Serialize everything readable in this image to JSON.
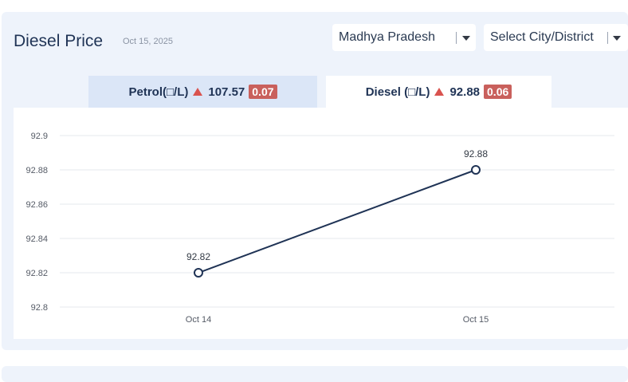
{
  "header": {
    "title": "Diesel Price",
    "date": "Oct 15, 2025",
    "state_select": "Madhya Pradesh",
    "city_select": "Select City/District"
  },
  "tabs": [
    {
      "label": "Petrol(□/L)",
      "price": "107.57",
      "change": "0.07",
      "active": false
    },
    {
      "label": "Diesel (□/L)",
      "price": "92.88",
      "change": "0.06",
      "active": true
    }
  ],
  "colors": {
    "line": "#1f3355",
    "increase": "#d9534f",
    "badge": "#c9605c",
    "grid": "#e6e8ec"
  },
  "chart_data": {
    "type": "line",
    "categories": [
      "Oct 14",
      "Oct 15"
    ],
    "values": [
      92.82,
      92.88
    ],
    "data_labels": [
      "92.82",
      "92.88"
    ],
    "yticks": [
      92.8,
      92.82,
      92.84,
      92.86,
      92.88,
      92.9
    ],
    "ytick_labels": [
      "92.8",
      "92.82",
      "92.84",
      "92.86",
      "92.88",
      "92.9"
    ],
    "ylim": [
      92.8,
      92.9
    ],
    "grid": true,
    "legend": "none"
  }
}
